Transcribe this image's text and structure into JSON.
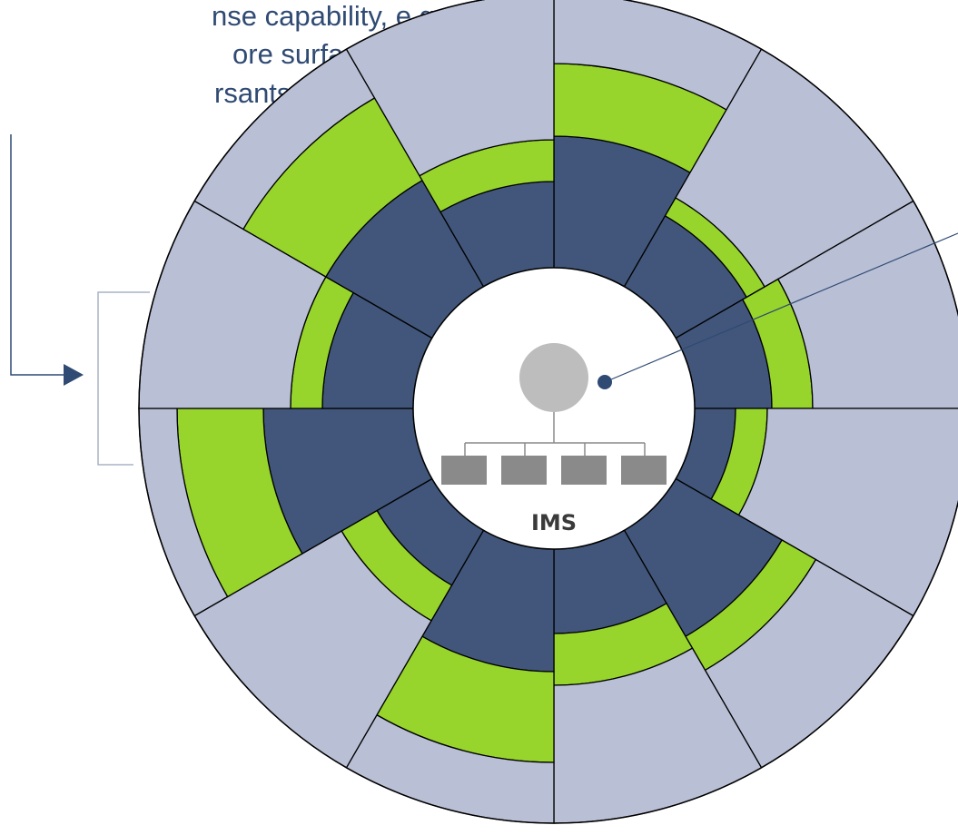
{
  "caption": {
    "lines": [
      "nse capability, e.g.,",
      "ore surface",
      "rsants."
    ]
  },
  "center": {
    "label": "IMS",
    "org_chart": {
      "node_count": 4
    }
  },
  "wheel": {
    "segments": 12,
    "rings": [
      "inner",
      "middle",
      "outer"
    ],
    "colors": {
      "dark": "#41567a",
      "green": "#97d42c",
      "light": "#b9bfd5",
      "outline": "#000000",
      "node_gray": "#bdbdbd",
      "box_gray": "#8a8a8a",
      "connector": "#2f4a73"
    }
  }
}
